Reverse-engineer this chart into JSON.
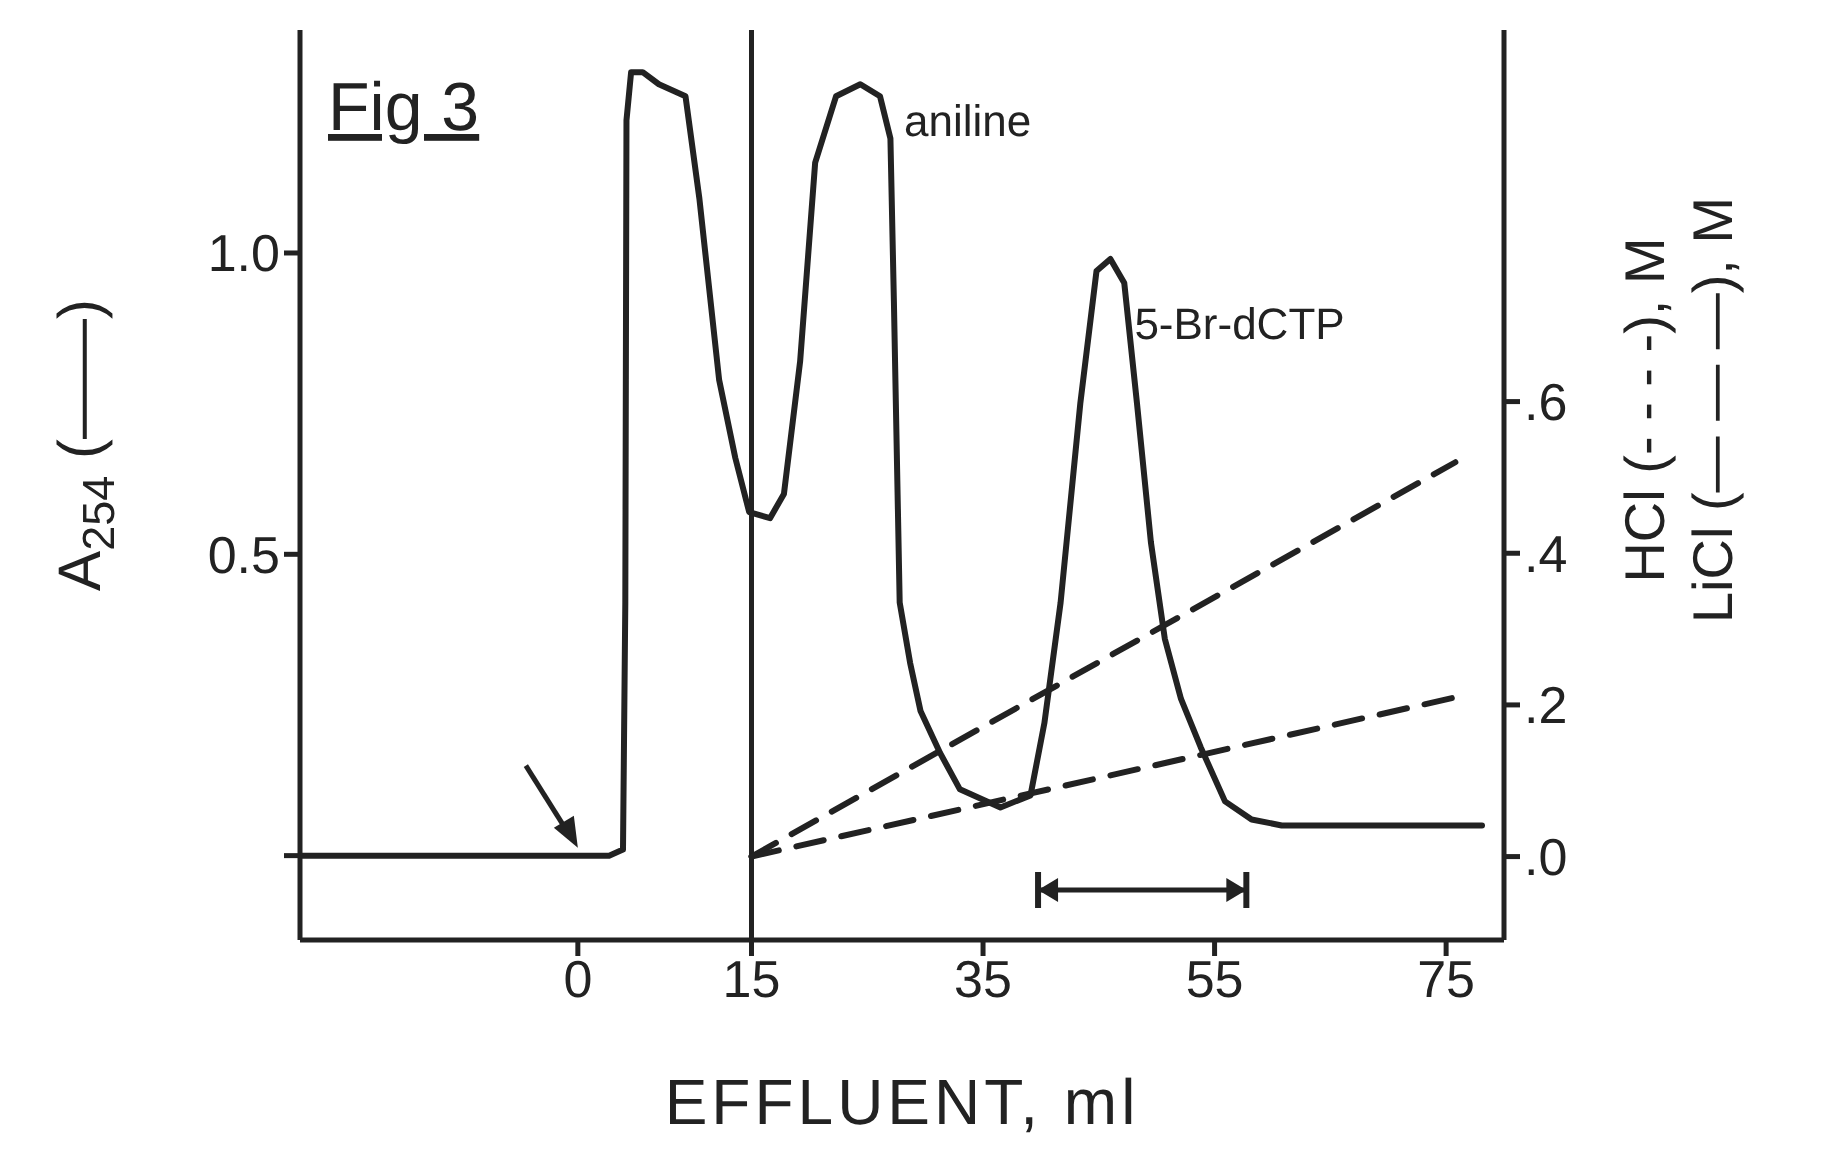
{
  "chart_data": {
    "type": "line",
    "xlabel": "EFFLUENT, ml",
    "ylabel": "A$_{254}$ (——)",
    "y2label": "HCl (- - - -), M\nLiCl (— — —), M",
    "annotations": [
      "Fig 3",
      {
        "text": "aniline",
        "x": 26.1,
        "y": 1.26
      },
      {
        "text": "5-Br-dCTP",
        "x": 46,
        "y": 0.99
      }
    ],
    "xlim": [
      -24,
      80
    ],
    "xticks": [
      0,
      15,
      35,
      55,
      75
    ],
    "ylim": [
      -0.14,
      1.37
    ],
    "yticks": [
      {
        "value": 0,
        "label": null
      },
      {
        "value": 0.5,
        "label": "0.5"
      },
      {
        "value": 1,
        "label": "1.0"
      }
    ],
    "y2lim": [
      -0.11,
      1.09
    ],
    "y2ticks": [
      {
        "value": 0,
        "label": ".0"
      },
      {
        "value": 0.2,
        "label": ".2"
      },
      {
        "value": 0.4,
        "label": ".4"
      },
      {
        "value": 0.6,
        "label": ".6"
      }
    ],
    "series": [
      {
        "color": "#222222",
        "line_style": "solid",
        "x": [
          -24,
          2.7,
          3.9,
          4.1,
          4.2,
          4.6,
          5.6,
          7.0,
          9.3,
          10.5,
          12.2,
          13.6,
          14.8,
          16.6,
          17.8,
          19.2,
          20.5,
          22.3,
          24.4,
          26.1,
          27.0,
          27.3,
          27.8,
          28.7,
          29.6,
          31.3,
          33.0,
          36.5,
          39.1,
          40.3,
          41.7,
          43.4,
          44.8,
          46.0,
          47.2,
          48.3,
          49.5,
          50.7,
          52.1,
          53.8,
          55.9,
          58.2,
          60.8,
          78.1
        ],
        "values": [
          0,
          0,
          0.01,
          0.42,
          1.22,
          1.3,
          1.3,
          1.28,
          1.26,
          1.09,
          0.79,
          0.66,
          0.57,
          0.56,
          0.6,
          0.82,
          1.15,
          1.26,
          1.28,
          1.26,
          1.19,
          0.92,
          0.42,
          0.32,
          0.24,
          0.17,
          0.11,
          0.08,
          0.1,
          0.22,
          0.42,
          0.75,
          0.97,
          0.99,
          0.95,
          0.75,
          0.52,
          0.36,
          0.26,
          0.18,
          0.09,
          0.06,
          0.05,
          0.05
        ]
      },
      {
        "color": "#222222",
        "line_style": "dashed",
        "axis": "y2",
        "x": [
          15,
          75.8
        ],
        "values": [
          0,
          0.52
        ]
      },
      {
        "color": "#222222",
        "line_style": "dashed",
        "axis": "y2",
        "x": [
          15,
          75.8
        ],
        "values": [
          0,
          0.21
        ]
      }
    ],
    "ref_lines": [
      {
        "axis": "x",
        "value": 15,
        "color": "#222222"
      }
    ],
    "marker": "none"
  }
}
